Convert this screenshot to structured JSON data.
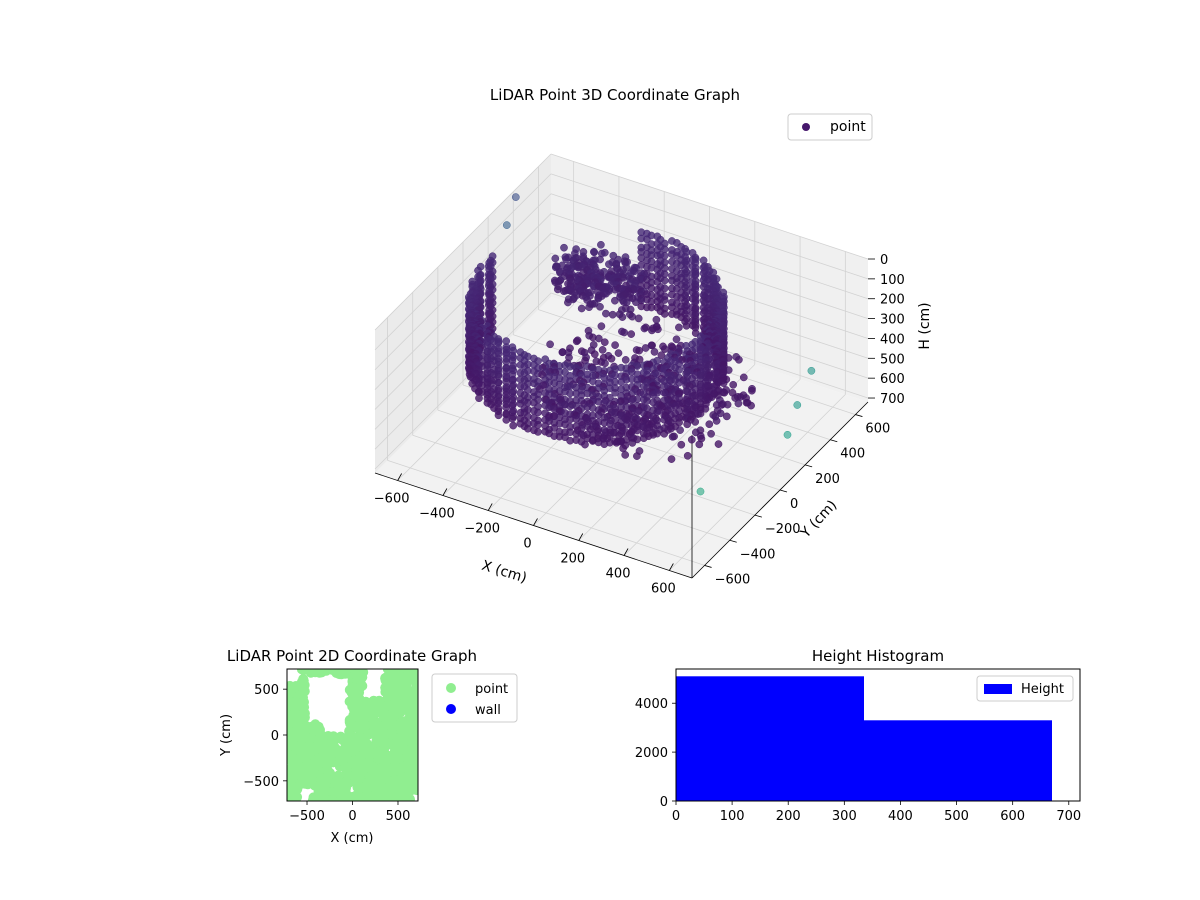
{
  "figure": {},
  "chart_data": [
    {
      "type": "scatter",
      "projection": "3d",
      "title": "LiDAR Point 3D Coordinate Graph",
      "xlabel": "X (cm)",
      "ylabel": "Y (cm)",
      "zlabel": "H (cm)",
      "xticks": [
        "−600",
        "−400",
        "−200",
        "0",
        "200",
        "400",
        "600"
      ],
      "yticks": [
        "−600",
        "−400",
        "−200",
        "0",
        "200",
        "400",
        "600"
      ],
      "zticks": [
        "0",
        "100",
        "200",
        "300",
        "400",
        "500",
        "600",
        "700"
      ],
      "xlim": [
        -700,
        700
      ],
      "ylim": [
        -700,
        700
      ],
      "zlim": [
        0,
        720
      ],
      "z_inverted": true,
      "legend": [
        "point"
      ],
      "legend_position": "upper right",
      "colormap": "viridis",
      "grid": true,
      "structures": [
        {
          "kind": "curved_wall",
          "center_x": -120,
          "center_y": 20,
          "radius": 480,
          "angle_from_deg": 175,
          "angle_to_deg": 460,
          "height_from": 80,
          "height_to": 470
        },
        {
          "kind": "dense_cluster",
          "center_x": -280,
          "center_y": 330,
          "height_from": 150,
          "height_to": 330
        },
        {
          "kind": "floor_debris",
          "center_x": 100,
          "center_y": 0,
          "height": 420
        }
      ],
      "outliers": [
        {
          "x": -700,
          "y": 420,
          "h": 40
        },
        {
          "x": -690,
          "y": 330,
          "h": 120
        },
        {
          "x": 600,
          "y": 430,
          "h": 430
        },
        {
          "x": 660,
          "y": 210,
          "h": 440
        },
        {
          "x": 560,
          "y": -380,
          "h": 540
        },
        {
          "x": 700,
          "y": 60,
          "h": 480
        }
      ]
    },
    {
      "type": "scatter",
      "title": "LiDAR Point 2D Coordinate Graph",
      "xlabel": "X (cm)",
      "ylabel": "Y (cm)",
      "xticks": [
        "−500",
        "0",
        "500"
      ],
      "yticks": [
        "−500",
        "0",
        "500"
      ],
      "xlim": [
        -720,
        720
      ],
      "ylim": [
        -720,
        720
      ],
      "series": [
        {
          "name": "point",
          "color": "#90ee90"
        },
        {
          "name": "wall",
          "color": "#0000ff"
        }
      ],
      "legend_position": "outside right",
      "grid": false
    },
    {
      "type": "bar",
      "title": "Height Histogram",
      "xticks": [
        "0",
        "100",
        "200",
        "300",
        "400",
        "500",
        "600",
        "700"
      ],
      "yticks": [
        "0",
        "2000",
        "4000"
      ],
      "xlim": [
        0,
        720
      ],
      "ylim": [
        0,
        5400
      ],
      "bins": [
        {
          "from": 0,
          "to": 335,
          "count": 5100
        },
        {
          "from": 335,
          "to": 670,
          "count": 3300
        }
      ],
      "series": [
        {
          "name": "Height",
          "color": "#0000ff"
        }
      ],
      "legend_position": "upper right",
      "grid": false
    }
  ]
}
